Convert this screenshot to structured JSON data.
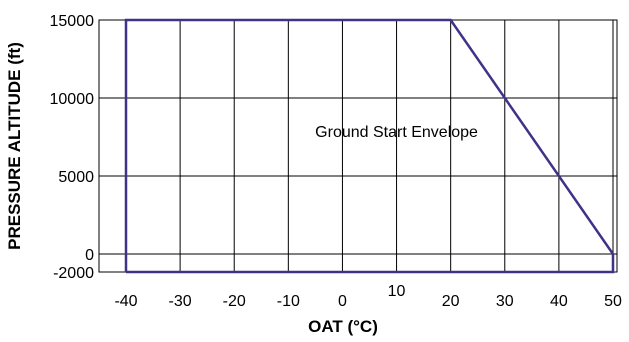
{
  "chart_data": {
    "type": "line",
    "title": "",
    "xlabel": "OAT (°C)",
    "ylabel": "PRESSURE ALTITUDE (ft)",
    "xlim": [
      -40,
      50
    ],
    "ylim": [
      -2000,
      15000
    ],
    "x_ticks": [
      -40,
      -30,
      -20,
      -10,
      0,
      10,
      20,
      30,
      40,
      50
    ],
    "x_tick_labels": [
      "-40",
      "-30",
      "-20",
      "-10",
      "0",
      "10",
      "20",
      "30",
      "40",
      "50"
    ],
    "y_ticks": [
      -2000,
      0,
      5000,
      10000,
      15000
    ],
    "y_tick_labels": [
      "-2000",
      "0",
      "5000",
      "10000",
      "15000"
    ],
    "grid": true,
    "series": [
      {
        "x": [
          -40,
          -40,
          20,
          50,
          50,
          -40
        ],
        "y": [
          -2000,
          15000,
          15000,
          0,
          -2000,
          -2000
        ]
      }
    ],
    "annotations": [
      {
        "text": "Ground Start Envelope",
        "x": 10,
        "y": 7500
      }
    ],
    "line_color": "#3f3288"
  }
}
